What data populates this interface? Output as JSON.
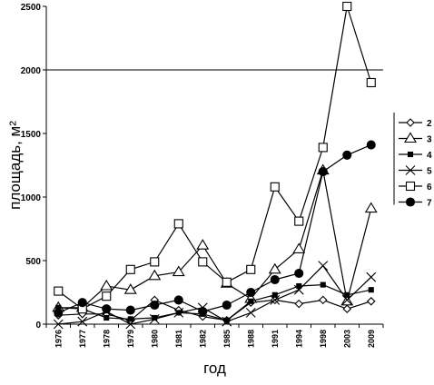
{
  "chart_data": {
    "type": "line",
    "xlabel": "год",
    "ylabel": "площадь, м²",
    "ylim": [
      0,
      2500
    ],
    "yticks": [
      "0",
      "500",
      "1000",
      "1500",
      "2000",
      "2500"
    ],
    "reference_line_y": 2000,
    "categories": [
      "1976",
      "1977",
      "1978",
      "1979",
      "1980",
      "1981",
      "1982",
      "1985",
      "1988",
      "1991",
      "1994",
      "1998",
      "2003",
      "2009"
    ],
    "legend_position": "right",
    "series": [
      {
        "name": "2",
        "marker": "diamond-open",
        "values": [
          70,
          80,
          80,
          30,
          190,
          110,
          60,
          30,
          170,
          190,
          160,
          190,
          120,
          180
        ]
      },
      {
        "name": "3",
        "marker": "triangle-open",
        "values": [
          130,
          130,
          300,
          270,
          380,
          410,
          620,
          320,
          200,
          430,
          590,
          1210,
          180,
          910
        ]
      },
      {
        "name": "4",
        "marker": "small-square-filled",
        "values": [
          130,
          120,
          50,
          40,
          50,
          90,
          80,
          30,
          180,
          230,
          300,
          310,
          230,
          270
        ]
      },
      {
        "name": "5",
        "marker": "cross",
        "values": [
          0,
          20,
          100,
          0,
          40,
          90,
          130,
          20,
          90,
          190,
          270,
          460,
          190,
          370
        ]
      },
      {
        "name": "6",
        "marker": "square-open",
        "values": [
          260,
          120,
          220,
          430,
          490,
          790,
          490,
          330,
          430,
          1080,
          810,
          1390,
          2500,
          1900
        ]
      },
      {
        "name": "7",
        "marker": "circle-filled",
        "values": [
          90,
          170,
          120,
          110,
          150,
          190,
          100,
          150,
          250,
          350,
          400,
          1200,
          1330,
          1410
        ]
      }
    ]
  }
}
